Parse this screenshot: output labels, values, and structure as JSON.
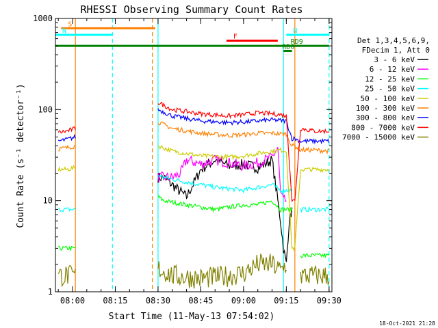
{
  "chart_data": {
    "type": "line",
    "title": "RHESSI Observing Summary Count Rates",
    "xlabel": "Start Time (11-May-13 07:54:02)",
    "ylabel": "Count Rate (s⁻¹ detector⁻¹)",
    "y_scale": "log",
    "ylim": [
      1,
      1000
    ],
    "xlim": [
      "07:54",
      "09:31"
    ],
    "x_ticks": [
      "08:00",
      "08:15",
      "08:30",
      "08:45",
      "09:00",
      "09:15",
      "09:30"
    ],
    "y_ticks": [
      "1",
      "10",
      "100",
      "1000"
    ],
    "legend_header": [
      "Det 1,3,4,5,6,9,",
      "FDecim 1, Att 0"
    ],
    "legend_position": "right",
    "footer_date": "18-Oct-2021 21:28",
    "data_gaps": [
      [
        "07:54",
        "07:57"
      ],
      [
        "08:02",
        "08:30"
      ],
      [
        "09:24",
        "09:26"
      ]
    ],
    "series": [
      {
        "name": "3 - 6 keV",
        "color": "#000000",
        "x": [
          "07:57",
          "08:00",
          "08:01",
          "08:30",
          "08:32",
          "08:36",
          "08:40",
          "08:45",
          "08:50",
          "08:55",
          "09:00",
          "09:05",
          "09:10",
          "09:13",
          "09:14",
          "09:15",
          "09:16",
          "09:17",
          "09:18"
        ],
        "y": [
          null,
          null,
          null,
          18,
          18,
          14,
          11,
          22,
          28,
          24,
          25,
          23,
          28,
          6,
          3,
          2,
          6,
          8,
          null
        ]
      },
      {
        "name": "6 - 12 keV",
        "color": "#ff00ff",
        "x": [
          "08:30",
          "08:35",
          "08:38",
          "08:40",
          "08:42",
          "08:45",
          "08:50",
          "08:55",
          "09:00",
          "09:05",
          "09:10",
          "09:12",
          "09:13",
          "09:14",
          "09:15",
          "09:16"
        ],
        "y": [
          18,
          18,
          20,
          28,
          27,
          25,
          28,
          26,
          24,
          26,
          30,
          38,
          12,
          10,
          10,
          null
        ]
      },
      {
        "name": "12 - 25 keV",
        "color": "#00ff00",
        "x": [
          "07:55",
          "07:58",
          "08:01",
          "08:02",
          "08:30",
          "08:32",
          "08:40",
          "08:50",
          "09:00",
          "09:05",
          "09:10",
          "09:13",
          "09:15",
          "09:17",
          "09:18",
          "09:20",
          "09:25",
          "09:30"
        ],
        "y": [
          3,
          3,
          3,
          null,
          11,
          10,
          9,
          8,
          9,
          9,
          10,
          8,
          8,
          8,
          null,
          2.5,
          2.5,
          2.5
        ]
      },
      {
        "name": "25 - 50 keV",
        "color": "#00ffff",
        "x": [
          "07:55",
          "07:58",
          "08:01",
          "08:02",
          "08:30",
          "08:32",
          "08:40",
          "08:50",
          "09:00",
          "09:05",
          "09:10",
          "09:13",
          "09:15",
          "09:17",
          "09:18",
          "09:20",
          "09:25",
          "09:30"
        ],
        "y": [
          8,
          8,
          8,
          null,
          19,
          18,
          16,
          14,
          13,
          14,
          15,
          13,
          13,
          13,
          null,
          8,
          8,
          8
        ]
      },
      {
        "name": "50 - 100 keV",
        "color": "#cccc00",
        "x": [
          "07:55",
          "07:58",
          "08:01",
          "08:02",
          "08:30",
          "08:35",
          "08:45",
          "08:55",
          "09:00",
          "09:05",
          "09:10",
          "09:13",
          "09:15",
          "09:17",
          "09:18",
          "09:20",
          "09:25",
          "09:30"
        ],
        "y": [
          22,
          22,
          23,
          null,
          40,
          35,
          31,
          30,
          31,
          33,
          35,
          36,
          35,
          3,
          3,
          22,
          22,
          22
        ]
      },
      {
        "name": "100 - 300 keV",
        "color": "#ff8000",
        "x": [
          "07:55",
          "07:58",
          "08:01",
          "08:02",
          "08:30",
          "08:35",
          "08:45",
          "08:55",
          "09:00",
          "09:05",
          "09:10",
          "09:13",
          "09:15",
          "09:17",
          "09:18",
          "09:20",
          "09:25",
          "09:30"
        ],
        "y": [
          37,
          38,
          40,
          null,
          73,
          62,
          55,
          52,
          53,
          55,
          55,
          54,
          54,
          40,
          40,
          36,
          36,
          35
        ]
      },
      {
        "name": "300 - 800 keV",
        "color": "#0000ff",
        "x": [
          "07:55",
          "07:58",
          "08:01",
          "08:02",
          "08:30",
          "08:35",
          "08:45",
          "08:55",
          "09:00",
          "09:05",
          "09:10",
          "09:13",
          "09:15",
          "09:17",
          "09:18",
          "09:20",
          "09:25",
          "09:30"
        ],
        "y": [
          45,
          47,
          50,
          null,
          100,
          85,
          75,
          72,
          73,
          75,
          77,
          76,
          75,
          48,
          48,
          45,
          45,
          45
        ]
      },
      {
        "name": "800 - 7000 keV",
        "color": "#ff0000",
        "x": [
          "07:55",
          "07:58",
          "08:01",
          "08:02",
          "08:30",
          "08:35",
          "08:45",
          "08:55",
          "09:00",
          "09:05",
          "09:10",
          "09:13",
          "09:15",
          "09:17",
          "09:18",
          "09:20",
          "09:25",
          "09:30"
        ],
        "y": [
          56,
          58,
          62,
          null,
          120,
          100,
          90,
          85,
          88,
          92,
          90,
          88,
          85,
          10,
          10,
          62,
          58,
          58
        ]
      },
      {
        "name": "7000 - 15000 keV",
        "color": "#808000",
        "x": [
          "07:55",
          "07:58",
          "08:01",
          "08:02",
          "08:30",
          "08:35",
          "08:45",
          "08:55",
          "09:00",
          "09:05",
          "09:10",
          "09:13",
          "09:15",
          "09:17",
          "09:18",
          "09:20",
          "09:25",
          "09:30"
        ],
        "y": [
          1.5,
          1.5,
          1.5,
          null,
          1.8,
          1.5,
          1.4,
          1.5,
          1.6,
          2,
          2,
          1.7,
          2,
          null,
          null,
          1.5,
          1.5,
          1.5
        ]
      }
    ],
    "annotations": [
      {
        "label": "S",
        "color": "#ff8000",
        "x_start": "07:56",
        "x_end": "08:29",
        "y": 780
      },
      {
        "label": "N",
        "color": "#00ffff",
        "x_start": "07:54",
        "x_end": "08:14",
        "y": 660
      },
      {
        "label": "N",
        "color": "#00ffff",
        "x_start": "09:15",
        "x_end": "09:30",
        "y": 660
      },
      {
        "label": "F",
        "color": "#ff0000",
        "x_start": "08:54",
        "x_end": "09:12",
        "y": 570
      },
      {
        "label": "",
        "color": "#008000",
        "x_start": "07:54",
        "x_end": "09:30",
        "y": 500
      },
      {
        "label": "RD9",
        "color": "#008000",
        "x_start": "09:17",
        "x_end": "09:20",
        "y": 500
      },
      {
        "label": "RD6",
        "color": "#008000",
        "x_start": "09:14",
        "x_end": "09:17",
        "y": 440
      }
    ],
    "vertical_markers": [
      {
        "x": "08:01",
        "style": "solid",
        "color": "#ff8000"
      },
      {
        "x": "08:14",
        "style": "dashed",
        "color": "#00ffff"
      },
      {
        "x": "08:28",
        "style": "dashed",
        "color": "#ff8000"
      },
      {
        "x": "08:30",
        "style": "solid",
        "color": "#00ffff"
      },
      {
        "x": "09:14",
        "style": "solid",
        "color": "#00ffff"
      },
      {
        "x": "09:18",
        "style": "solid",
        "color": "#ff8000"
      },
      {
        "x": "09:30",
        "style": "dashed",
        "color": "#00ffff"
      }
    ]
  }
}
